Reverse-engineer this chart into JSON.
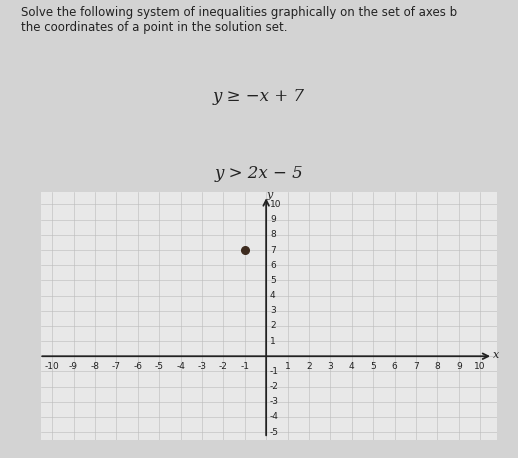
{
  "title_text": "Solve the following system of inequalities graphically on the set of axes b\nthe coordinates of a point in the solution set.",
  "eq1": "y ≥ −x + 7",
  "eq2": "y > 2x − 5",
  "xlim": [
    -10.5,
    10.8
  ],
  "ylim": [
    -5.5,
    10.8
  ],
  "xmin": -10,
  "xmax": 10,
  "ymin": -5,
  "ymax": 10,
  "xticks": [
    -10,
    -9,
    -8,
    -7,
    -6,
    -5,
    -4,
    -3,
    -2,
    -1,
    1,
    2,
    3,
    4,
    5,
    6,
    7,
    8,
    9,
    10
  ],
  "yticks": [
    -5,
    -4,
    -3,
    -2,
    -1,
    1,
    2,
    3,
    4,
    5,
    6,
    7,
    8,
    9,
    10
  ],
  "dot_x": -1,
  "dot_y": 7,
  "dot_color": "#3d2b1f",
  "bg_color": "#d3d3d3",
  "plot_bg": "#e8e8e8",
  "grid_color": "#bbbbbb",
  "axis_color": "#222222",
  "text_color": "#222222",
  "font_size_title": 8.5,
  "font_size_eq": 12,
  "tick_fontsize": 6.5,
  "fig_width": 5.18,
  "fig_height": 4.58,
  "dpi": 100
}
